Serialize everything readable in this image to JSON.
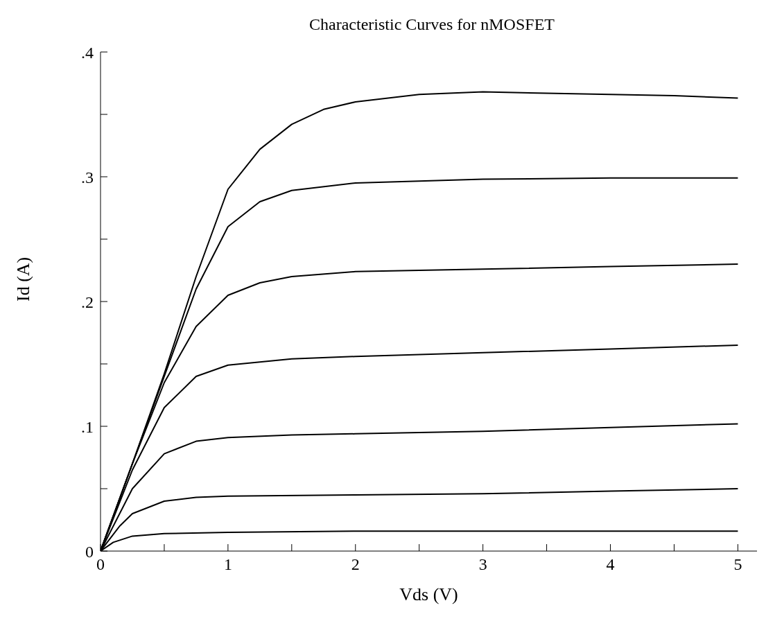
{
  "chart_data": {
    "type": "line",
    "title": "Characteristic Curves for nMOSFET",
    "xlabel": "Vds (V)",
    "ylabel": "Id (A)",
    "xlim": [
      0,
      5.15
    ],
    "ylim": [
      0,
      0.4
    ],
    "xticks": [
      0,
      {
        "value": 0.5,
        "label": null
      },
      1,
      {
        "value": 1.5,
        "label": null
      },
      2,
      {
        "value": 2.5,
        "label": null
      },
      3,
      {
        "value": 3.5,
        "label": null
      },
      4,
      {
        "value": 4.5,
        "label": null
      },
      5
    ],
    "yticks": [
      0,
      {
        "value": 0.05,
        "label": null
      },
      {
        "value": 0.1,
        "label": ".1"
      },
      {
        "value": 0.15,
        "label": null
      },
      {
        "value": 0.2,
        "label": ".2"
      },
      {
        "value": 0.25,
        "label": null
      },
      {
        "value": 0.3,
        "label": ".3"
      },
      {
        "value": 0.35,
        "label": null
      },
      {
        "value": 0.4,
        "label": ".4"
      }
    ],
    "grid": false,
    "legend": false,
    "marker": "none",
    "line_style": "solid",
    "series": [
      {
        "color": "#000000",
        "x": [
          0,
          0.25,
          0.5,
          0.75,
          1,
          1.25,
          1.5,
          1.75,
          2,
          2.5,
          3,
          3.5,
          4,
          4.5,
          5
        ],
        "values": [
          0,
          0.07,
          0.142,
          0.22,
          0.29,
          0.322,
          0.342,
          0.354,
          0.36,
          0.366,
          0.368,
          0.367,
          0.366,
          0.365,
          0.363
        ]
      },
      {
        "color": "#000000",
        "x": [
          0,
          0.25,
          0.5,
          0.75,
          1,
          1.25,
          1.5,
          2,
          3,
          4,
          5
        ],
        "values": [
          0,
          0.07,
          0.14,
          0.21,
          0.26,
          0.28,
          0.289,
          0.295,
          0.298,
          0.299,
          0.299
        ]
      },
      {
        "color": "#000000",
        "x": [
          0,
          0.25,
          0.5,
          0.75,
          1,
          1.25,
          1.5,
          2,
          3,
          4,
          5
        ],
        "values": [
          0,
          0.07,
          0.135,
          0.18,
          0.205,
          0.215,
          0.22,
          0.224,
          0.226,
          0.228,
          0.23
        ]
      },
      {
        "color": "#000000",
        "x": [
          0,
          0.25,
          0.5,
          0.75,
          1,
          1.5,
          2,
          3,
          4,
          5
        ],
        "values": [
          0,
          0.065,
          0.115,
          0.14,
          0.149,
          0.154,
          0.156,
          0.159,
          0.162,
          0.165
        ]
      },
      {
        "color": "#000000",
        "x": [
          0,
          0.25,
          0.5,
          0.75,
          1,
          1.5,
          2,
          3,
          4,
          5
        ],
        "values": [
          0,
          0.05,
          0.078,
          0.088,
          0.091,
          0.093,
          0.094,
          0.096,
          0.099,
          0.102
        ]
      },
      {
        "color": "#000000",
        "x": [
          0,
          0.15,
          0.25,
          0.5,
          0.75,
          1,
          2,
          3,
          4,
          5
        ],
        "values": [
          0,
          0.02,
          0.03,
          0.04,
          0.043,
          0.044,
          0.045,
          0.046,
          0.048,
          0.05
        ]
      },
      {
        "color": "#000000",
        "x": [
          0,
          0.1,
          0.25,
          0.5,
          1,
          2,
          5
        ],
        "values": [
          0,
          0.007,
          0.012,
          0.014,
          0.015,
          0.016,
          0.016
        ]
      }
    ]
  }
}
